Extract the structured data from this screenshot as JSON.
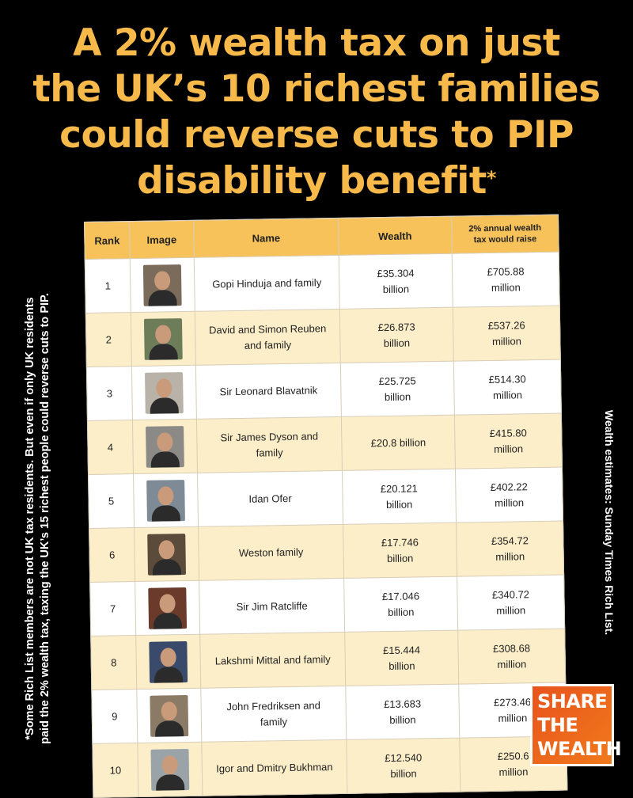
{
  "headline": {
    "lines": [
      "A 2% wealth tax on just",
      "the UK’s 10 richest families",
      "could reverse cuts to PIP",
      "disability benefit"
    ],
    "footnote_mark": "*"
  },
  "side_note_left": {
    "line1": "*Some Rich List members are not UK tax residents. But even if only UK residents",
    "line2": "paid the 2% wealth tax, taxing the UK’s 15 richest people could reverse cuts to PIP."
  },
  "side_note_right": "Wealth estimates: Sunday Times Rich List.",
  "table": {
    "headers": {
      "rank": "Rank",
      "image": "Image",
      "name": "Name",
      "wealth": "Wealth",
      "tax": "2% annual wealth tax would raise"
    },
    "rows": [
      {
        "rank": "1",
        "name": "Gopi Hinduja and family",
        "wealth": "£35.304 billion",
        "tax": "£705.88 million",
        "photo_bg": "#7b6b5a"
      },
      {
        "rank": "2",
        "name": "David and Simon Reuben and family",
        "wealth": "£26.873 billion",
        "tax": "£537.26 million",
        "photo_bg": "#6d7d5a"
      },
      {
        "rank": "3",
        "name": "Sir Leonard Blavatnik",
        "wealth": "£25.725 billion",
        "tax": "£514.30 million",
        "photo_bg": "#b9b2a8"
      },
      {
        "rank": "4",
        "name": "Sir James Dyson and family",
        "wealth": "£20.8 billion",
        "tax": "£415.80 million",
        "photo_bg": "#8c8a86"
      },
      {
        "rank": "5",
        "name": "Idan Ofer",
        "wealth": "£20.121 billion",
        "tax": "£402.22 million",
        "photo_bg": "#7e8b96"
      },
      {
        "rank": "6",
        "name": "Weston family",
        "wealth": "£17.746 billion",
        "tax": "£354.72 million",
        "photo_bg": "#5a4b3a"
      },
      {
        "rank": "7",
        "name": "Sir Jim Ratcliffe",
        "wealth": "£17.046 billion",
        "tax": "£340.72 million",
        "photo_bg": "#6a3a2a"
      },
      {
        "rank": "8",
        "name": "Lakshmi Mittal and family",
        "wealth": "£15.444 billion",
        "tax": "£308.68 million",
        "photo_bg": "#3a4a6a"
      },
      {
        "rank": "9",
        "name": "John Fredriksen and family",
        "wealth": "£13.683 billion",
        "tax": "£273.46 million",
        "photo_bg": "#8a7a66"
      },
      {
        "rank": "10",
        "name": "Igor and Dmitry Bukhman",
        "wealth": "£12.540 billion",
        "tax": "£250.6 million",
        "photo_bg": "#9aa4a8"
      }
    ]
  },
  "logo": {
    "line1": "SHARE",
    "line2": "THE",
    "line3": "WEALTH"
  },
  "colors": {
    "headline": "#f6b94a",
    "header_row": "#f7c25a",
    "alt_row": "#fbeec8",
    "logo_bg": "#ec601c"
  }
}
